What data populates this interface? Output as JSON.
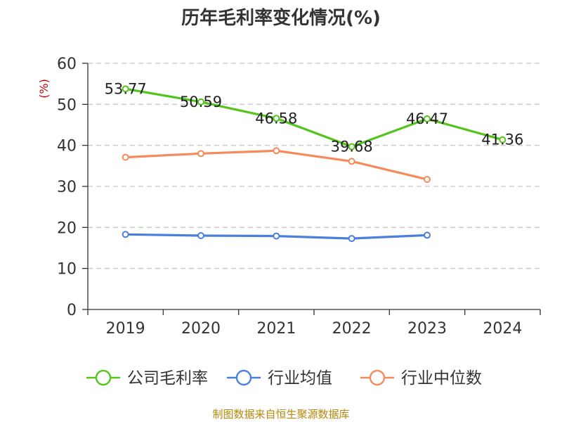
{
  "chart_data": {
    "type": "line",
    "title": "历年毛利率变化情况(%)",
    "ylabel": "(%)",
    "xlabel": "",
    "categories": [
      "2019",
      "2020",
      "2021",
      "2022",
      "2023",
      "2024"
    ],
    "ylim": [
      0,
      60
    ],
    "yticks": [
      0,
      10,
      20,
      30,
      40,
      50,
      60
    ],
    "grid": true,
    "legend_position": "bottom",
    "series": [
      {
        "name": "公司毛利率",
        "color": "#52c41a",
        "show_labels": true,
        "values": [
          53.77,
          50.59,
          46.58,
          39.68,
          46.47,
          41.36
        ],
        "labels": [
          "53.77",
          "50.59",
          "46.58",
          "39.68",
          "46.47",
          "41.36"
        ]
      },
      {
        "name": "行业均值",
        "color": "#4a7fdc",
        "show_labels": false,
        "values": [
          18.3,
          18.0,
          17.9,
          17.3,
          18.1,
          null
        ]
      },
      {
        "name": "行业中位数",
        "color": "#f58a5b",
        "show_labels": false,
        "values": [
          37.1,
          38.0,
          38.7,
          36.1,
          31.7,
          null
        ]
      }
    ]
  },
  "footer": {
    "source": "制图数据来自恒生聚源数据库"
  }
}
